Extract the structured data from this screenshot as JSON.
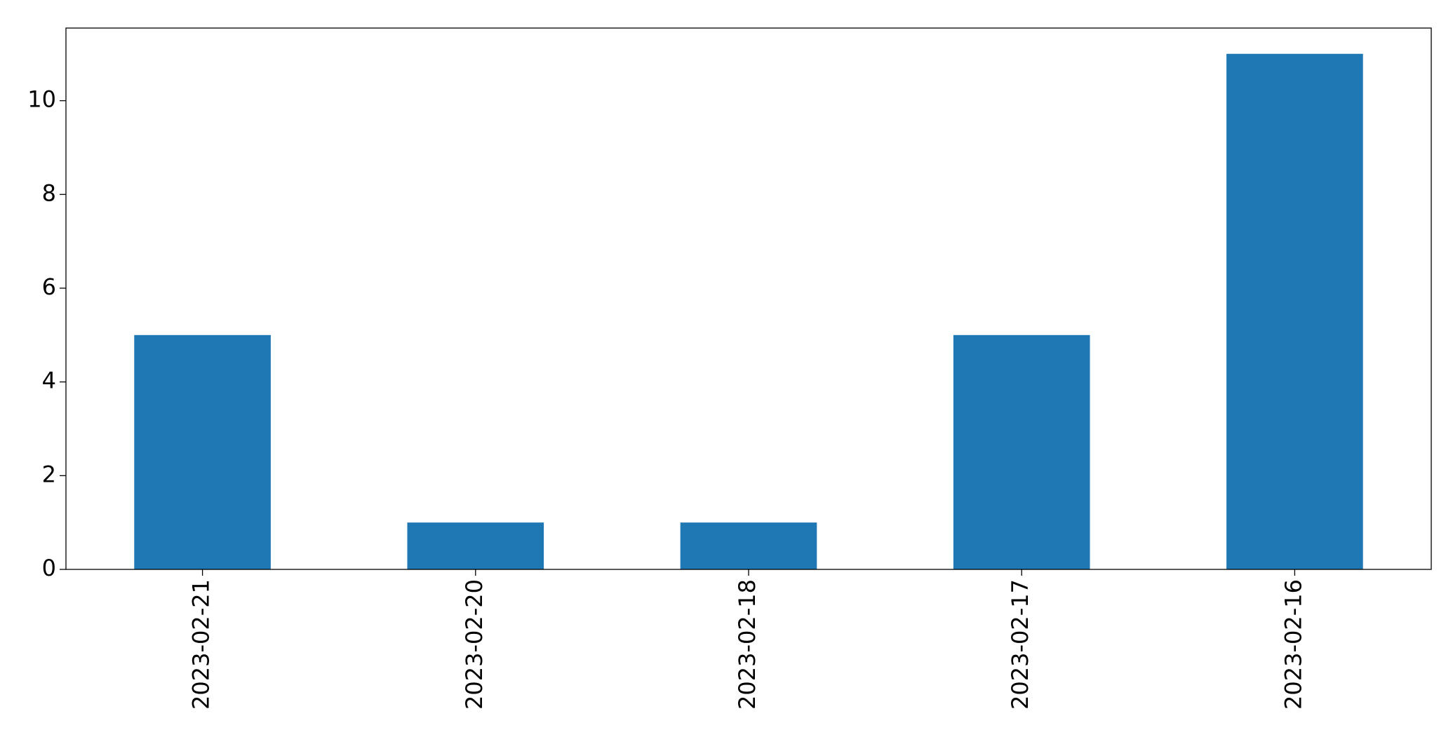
{
  "chart_data": {
    "type": "bar",
    "categories": [
      "2023-02-21",
      "2023-02-20",
      "2023-02-18",
      "2023-02-17",
      "2023-02-16"
    ],
    "values": [
      5,
      1,
      1,
      5,
      11
    ],
    "color": "#1f77b4",
    "ylim": [
      0,
      11.55
    ],
    "yticks": [
      0,
      2,
      4,
      6,
      8,
      10
    ],
    "grid": false
  }
}
